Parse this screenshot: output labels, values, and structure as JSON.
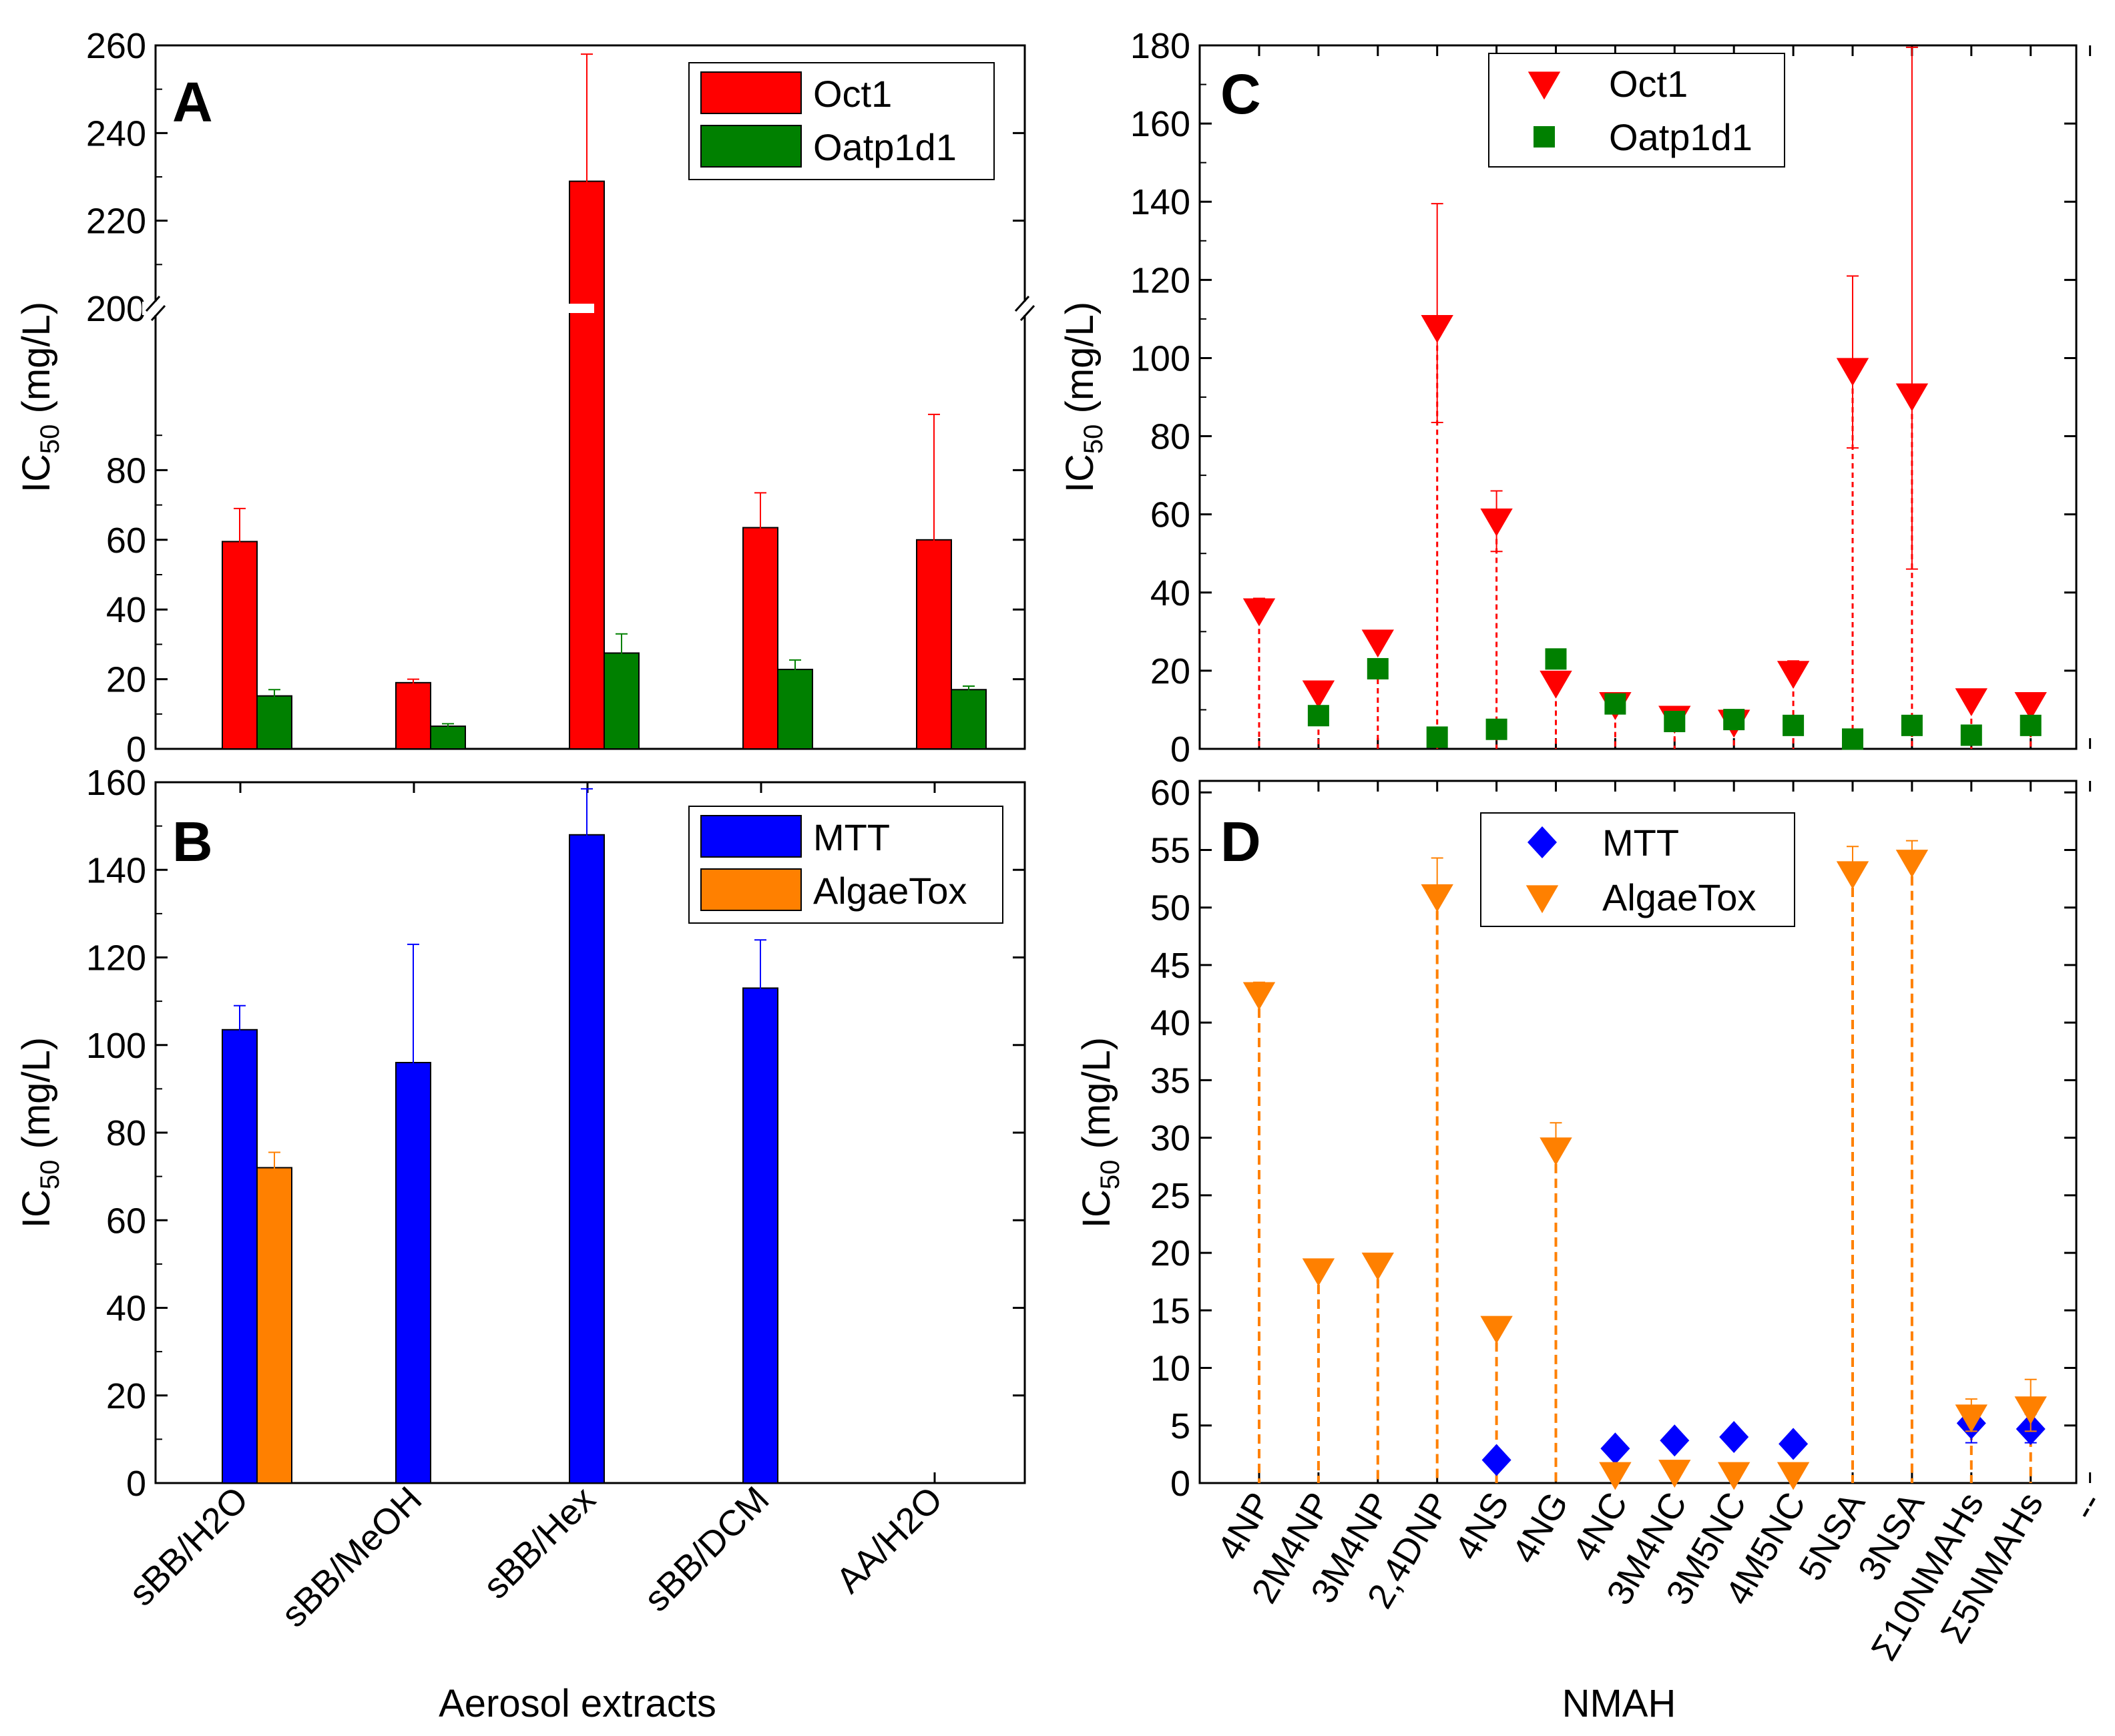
{
  "chart_data": [
    {
      "panel": "A",
      "type": "bar",
      "title": "A",
      "xlabel": "Aerosol extracts",
      "ylabel_main": "IC",
      "ylabel_sub": "50",
      "ylabel_unit": " (mg/L)",
      "axis_break": {
        "lower_range": [
          0,
          100
        ],
        "upper_range": [
          200,
          260
        ]
      },
      "yticks": [
        "0",
        "20",
        "40",
        "60",
        "80",
        "200",
        "220",
        "240",
        "260"
      ],
      "categories": [
        "sBB/H2O",
        "sBB/MeOH",
        "sBB/Hex",
        "sBB/DCM",
        "AA/H2O"
      ],
      "series": [
        {
          "name": "Oct1",
          "color": "#ff0000",
          "values": [
            59.5,
            19,
            229,
            63.5,
            60
          ],
          "err_low": [
            52,
            18,
            203,
            55,
            38
          ],
          "err_high": [
            69,
            20,
            258,
            73.5,
            96
          ]
        },
        {
          "name": "Oatp1d1",
          "color": "#008000",
          "values": [
            15.2,
            6.5,
            27.5,
            22.8,
            17
          ],
          "err_low": [
            13.5,
            5.8,
            22,
            20.5,
            16
          ],
          "err_high": [
            17,
            7.2,
            33,
            25.5,
            18
          ]
        }
      ],
      "legend": {
        "entries": [
          "Oct1",
          "Oatp1d1"
        ],
        "position": "top-right"
      }
    },
    {
      "panel": "B",
      "type": "bar",
      "title": "B",
      "xlabel": "Aerosol extracts",
      "ylabel_main": "IC",
      "ylabel_sub": "50",
      "ylabel_unit": " (mg/L)",
      "ylim": [
        0,
        160
      ],
      "yticks": [
        "0",
        "20",
        "40",
        "60",
        "80",
        "100",
        "120",
        "140",
        "160"
      ],
      "categories": [
        "sBB/H2O",
        "sBB/MeOH",
        "sBB/Hex",
        "sBB/DCM",
        "AA/H2O"
      ],
      "series": [
        {
          "name": "MTT",
          "color": "#0000ff",
          "values": [
            103.5,
            96,
            148,
            113,
            null
          ],
          "err_low": [
            98,
            75,
            138.5,
            102.5,
            null
          ],
          "err_high": [
            109,
            123,
            158.5,
            124,
            null
          ]
        },
        {
          "name": "AlgaeTox",
          "color": "#ff8000",
          "values": [
            72,
            null,
            null,
            null,
            null
          ],
          "err_low": [
            68.5,
            null,
            null,
            null,
            null
          ],
          "err_high": [
            75.5,
            null,
            null,
            null,
            null
          ]
        }
      ],
      "legend": {
        "entries": [
          "MTT",
          "AlgaeTox"
        ],
        "position": "top-right"
      }
    },
    {
      "panel": "C",
      "type": "scatter",
      "title": "C",
      "ylabel_main": "IC",
      "ylabel_sub": "50",
      "ylabel_unit": " (mg/L)",
      "ylim": [
        0,
        180
      ],
      "yticks": [
        "0",
        "20",
        "40",
        "60",
        "80",
        "100",
        "120",
        "140",
        "160",
        "180"
      ],
      "categories": [
        "4NP",
        "2M4NP",
        "3M4NP",
        "2,4DNP",
        "4NS",
        "4NG",
        "4NC",
        "3M4NC",
        "3M5NC",
        "4M5NC",
        "5NSA",
        "3NSA",
        "Σ10NMAHs",
        "Σ5NMAHs",
        "--"
      ],
      "series": [
        {
          "name": "Oct1",
          "color": "#ff0000",
          "marker": "triangle-down",
          "drop_lines": true,
          "values": [
            35.5,
            14.5,
            27.5,
            108,
            58.5,
            17,
            11.5,
            8,
            7,
            19.5,
            97,
            90.5,
            12.5,
            11.5,
            null
          ],
          "err_low": [
            null,
            null,
            null,
            83.5,
            50.5,
            null,
            null,
            null,
            null,
            null,
            77,
            46,
            null,
            null,
            null
          ],
          "err_high": [
            38.5,
            null,
            null,
            139.5,
            66,
            null,
            null,
            null,
            null,
            22.5,
            121,
            179.5,
            null,
            null,
            null
          ]
        },
        {
          "name": "Oatp1d1",
          "color": "#008000",
          "marker": "square",
          "drop_lines": false,
          "values": [
            null,
            8.5,
            20.5,
            3,
            5,
            23,
            11.5,
            7,
            7.5,
            6,
            2.5,
            6,
            3.5,
            6,
            null
          ],
          "err_low": [
            null,
            null,
            null,
            null,
            null,
            null,
            null,
            null,
            null,
            null,
            null,
            null,
            null,
            null,
            null
          ],
          "err_high": [
            null,
            null,
            null,
            null,
            null,
            null,
            null,
            null,
            null,
            null,
            null,
            null,
            null,
            null,
            null
          ]
        }
      ],
      "legend": {
        "entries": [
          "Oct1",
          "Oatp1d1"
        ],
        "position": "top-left"
      }
    },
    {
      "panel": "D",
      "type": "scatter",
      "title": "D",
      "xlabel": "NMAH",
      "ylabel_main": "IC",
      "ylabel_sub": "50",
      "ylabel_unit": " (mg/L)",
      "ylim": [
        0,
        61
      ],
      "yticks": [
        "0",
        "5",
        "10",
        "15",
        "20",
        "25",
        "30",
        "35",
        "40",
        "45",
        "50",
        "55",
        "60"
      ],
      "categories": [
        "4NP",
        "2M4NP",
        "3M4NP",
        "2,4DNP",
        "4NS",
        "4NG",
        "4NC",
        "3M4NC",
        "3M5NC",
        "4M5NC",
        "5NSA",
        "3NSA",
        "Σ10NMAHs",
        "Σ5NMAHs",
        "--"
      ],
      "series": [
        {
          "name": "MTT",
          "color": "#0000ff",
          "marker": "diamond",
          "drop_lines": false,
          "values": [
            null,
            null,
            null,
            null,
            2,
            null,
            3,
            3.7,
            4,
            3.4,
            null,
            null,
            5.2,
            4.7,
            null
          ],
          "err_low": [
            null,
            null,
            null,
            null,
            null,
            null,
            null,
            null,
            null,
            null,
            null,
            null,
            3.5,
            3.5,
            null
          ],
          "err_high": [
            null,
            null,
            null,
            null,
            null,
            null,
            null,
            null,
            null,
            null,
            null,
            null,
            6.5,
            6,
            null
          ]
        },
        {
          "name": "AlgaeTox",
          "color": "#ff8000",
          "marker": "triangle-down",
          "drop_lines": true,
          "values": [
            42.5,
            18.5,
            19,
            51,
            13.5,
            29,
            0.8,
            1,
            0.8,
            0.8,
            53,
            54,
            5.8,
            6.5,
            null
          ],
          "err_low": [
            null,
            null,
            null,
            null,
            null,
            null,
            null,
            null,
            null,
            null,
            null,
            null,
            4.5,
            4.5,
            null
          ],
          "err_high": [
            43.5,
            null,
            19.8,
            54.3,
            null,
            31.3,
            null,
            null,
            null,
            null,
            55.3,
            55.8,
            7.3,
            9,
            null
          ]
        }
      ],
      "legend": {
        "entries": [
          "MTT",
          "AlgaeTox"
        ],
        "position": "top-left"
      }
    }
  ]
}
